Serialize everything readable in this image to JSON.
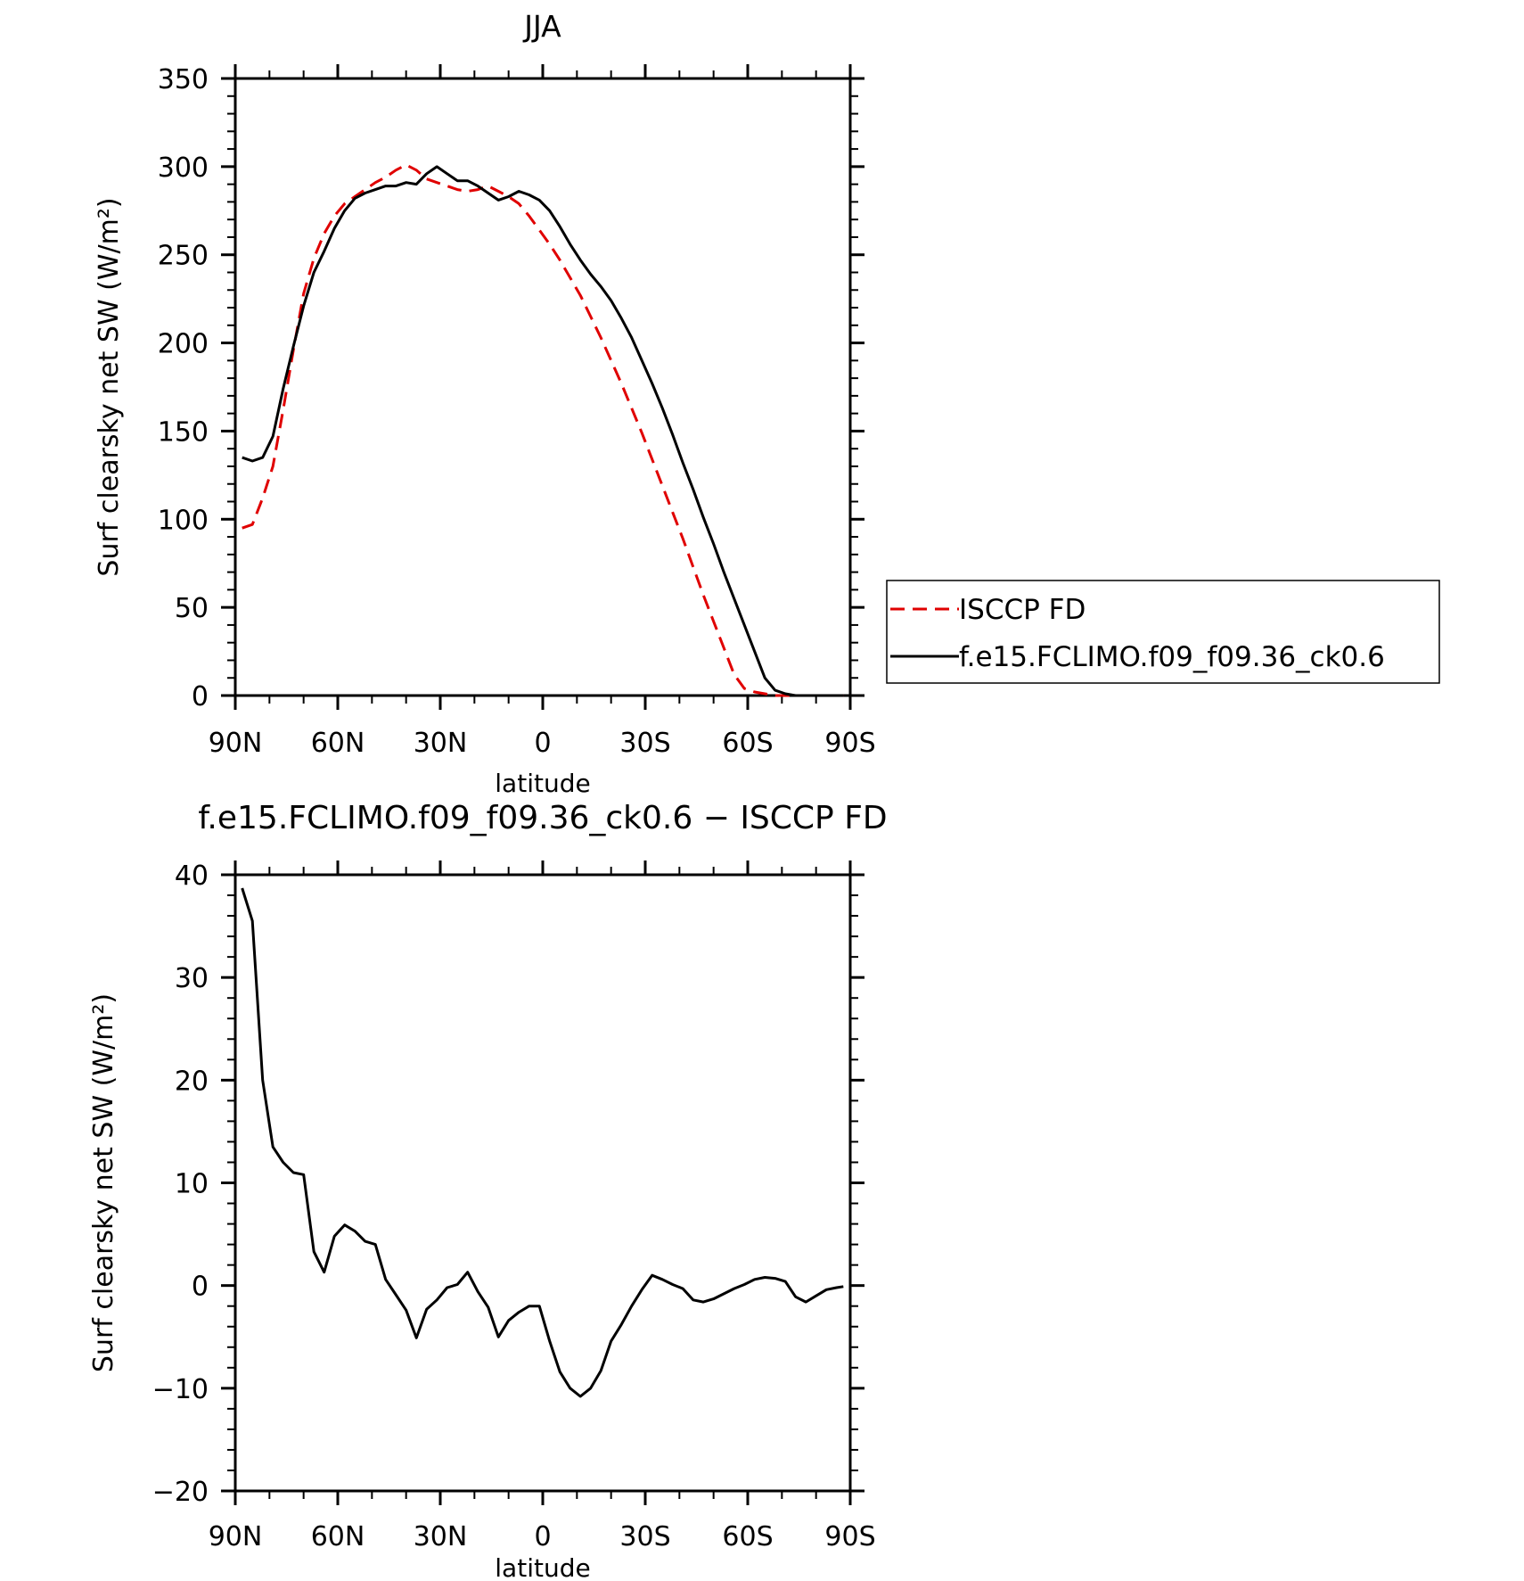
{
  "chart_data": [
    {
      "type": "line",
      "title": "JJA",
      "xlabel": "latitude",
      "ylabel": "Surf clearsky net SW (W/m²)",
      "xlim": [
        90,
        -90
      ],
      "ylim": [
        0,
        350
      ],
      "x_ticks": [
        90,
        60,
        30,
        0,
        -30,
        -60,
        -90
      ],
      "x_tick_labels": [
        "90N",
        "60N",
        "30N",
        "0",
        "30S",
        "60S",
        "90S"
      ],
      "y_ticks": [
        0,
        50,
        100,
        150,
        200,
        250,
        300,
        350
      ],
      "y_tick_labels": [
        "0",
        "50",
        "100",
        "150",
        "200",
        "250",
        "300",
        "350"
      ],
      "legend_position": "right",
      "series": [
        {
          "name": "ISCCP FD",
          "color": "#e00000",
          "dash": "dashed",
          "x": [
            88,
            85,
            82,
            79,
            76,
            73,
            70,
            67,
            64,
            61,
            58,
            55,
            52,
            49,
            46,
            43,
            40,
            37,
            34,
            31,
            28,
            25,
            22,
            19,
            16,
            13,
            10,
            7,
            4,
            1,
            -2,
            -5,
            -8,
            -11,
            -14,
            -17,
            -20,
            -23,
            -26,
            -29,
            -32,
            -35,
            -38,
            -41,
            -44,
            -47,
            -50,
            -53,
            -56,
            -59,
            -62,
            -65,
            -68,
            -71,
            -74,
            -77,
            -80,
            -83,
            -86,
            -88
          ],
          "values": [
            95,
            97,
            112,
            130,
            162,
            196,
            228,
            248,
            262,
            272,
            279,
            283,
            287,
            291,
            294,
            298,
            301,
            298,
            293,
            291,
            289,
            287,
            286,
            287,
            289,
            286,
            283,
            279,
            272,
            264,
            256,
            247,
            237,
            227,
            215,
            203,
            190,
            177,
            163,
            149,
            134,
            119,
            104,
            89,
            73,
            57,
            42,
            27,
            12,
            4,
            2,
            1,
            0,
            0,
            0,
            0,
            0,
            0,
            0,
            0
          ]
        },
        {
          "name": "f.e15.FCLIMO.f09_f09.36_ck0.6",
          "color": "#000000",
          "dash": "solid",
          "x": [
            88,
            85,
            82,
            79,
            76,
            73,
            70,
            67,
            64,
            61,
            58,
            55,
            52,
            49,
            46,
            43,
            40,
            37,
            34,
            31,
            28,
            25,
            22,
            19,
            16,
            13,
            10,
            7,
            4,
            1,
            -2,
            -5,
            -8,
            -11,
            -14,
            -17,
            -20,
            -23,
            -26,
            -29,
            -32,
            -35,
            -38,
            -41,
            -44,
            -47,
            -50,
            -53,
            -56,
            -59,
            -62,
            -65,
            -68,
            -71,
            -74,
            -77,
            -80,
            -83,
            -86,
            -88
          ],
          "values": [
            135,
            133,
            135,
            147,
            174,
            198,
            221,
            240,
            252,
            265,
            275,
            282,
            285,
            287,
            289,
            289,
            291,
            290,
            296,
            300,
            296,
            292,
            292,
            289,
            285,
            281,
            283,
            286,
            284,
            281,
            275,
            266,
            256,
            247,
            239,
            232,
            224,
            214,
            203,
            190,
            177,
            163,
            148,
            132,
            117,
            101,
            86,
            70,
            55,
            40,
            25,
            10,
            3,
            1,
            0,
            0,
            0,
            0,
            0,
            0
          ]
        }
      ]
    },
    {
      "type": "line",
      "title": "f.e15.FCLIMO.f09_f09.36_ck0.6 − ISCCP FD",
      "xlabel": "latitude",
      "ylabel": "Surf clearsky net SW (W/m²)",
      "xlim": [
        90,
        -90
      ],
      "ylim": [
        -20,
        40
      ],
      "x_ticks": [
        90,
        60,
        30,
        0,
        -30,
        -60,
        -90
      ],
      "x_tick_labels": [
        "90N",
        "60N",
        "30N",
        "0",
        "30S",
        "60S",
        "90S"
      ],
      "y_ticks": [
        -20,
        -10,
        0,
        10,
        20,
        30,
        40
      ],
      "y_tick_labels": [
        "−20",
        "−10",
        "0",
        "10",
        "20",
        "30",
        "40"
      ],
      "series": [
        {
          "color": "#000000",
          "dash": "solid",
          "x": [
            88,
            85,
            82,
            79,
            76,
            73,
            70,
            67,
            64,
            61,
            58,
            55,
            52,
            49,
            46,
            43,
            40,
            37,
            34,
            31,
            28,
            25,
            22,
            19,
            16,
            13,
            10,
            7,
            4,
            1,
            -2,
            -5,
            -8,
            -11,
            -14,
            -17,
            -20,
            -23,
            -26,
            -29,
            -32,
            -35,
            -38,
            -41,
            -44,
            -47,
            -50,
            -53,
            -56,
            -59,
            -62,
            -65,
            -68,
            -71,
            -74,
            -77,
            -80,
            -83,
            -86,
            -88
          ],
          "values": [
            38.7,
            35.5,
            20,
            13.5,
            12,
            11,
            10.8,
            3.3,
            1.3,
            4.8,
            5.9,
            5.3,
            4.3,
            4.0,
            0.6,
            -0.9,
            -2.4,
            -5.1,
            -2.3,
            -1.4,
            -0.2,
            0.1,
            1.3,
            -0.6,
            -2.1,
            -5.0,
            -3.4,
            -2.6,
            -2.0,
            -2.0,
            -5.4,
            -8.4,
            -10.0,
            -10.8,
            -10.0,
            -8.3,
            -5.4,
            -3.8,
            -2.0,
            -0.4,
            1.0,
            0.6,
            0.1,
            -0.3,
            -1.4,
            -1.6,
            -1.3,
            -0.8,
            -0.3,
            0.1,
            0.6,
            0.8,
            0.7,
            0.4,
            -1.1,
            -1.6,
            -1.0,
            -0.4,
            -0.2,
            -0.1
          ]
        }
      ]
    }
  ]
}
